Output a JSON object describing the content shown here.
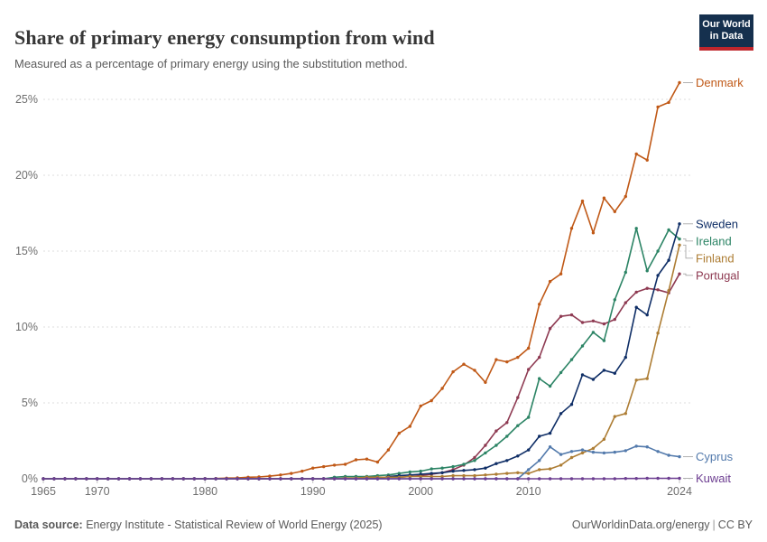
{
  "header": {
    "title": "Share of primary energy consumption from wind",
    "subtitle": "Measured as a percentage of primary energy using the substitution method.",
    "logo": {
      "line1": "Our World",
      "line2": "in Data"
    }
  },
  "footer": {
    "datasource_label": "Data source:",
    "datasource_value": " Energy Institute - Statistical Review of World Energy (2025)",
    "link": "OurWorldinData.org/energy",
    "separator": "|",
    "license": "CC BY"
  },
  "chart_data": {
    "type": "line",
    "title": "Share of primary energy consumption from wind",
    "xlabel": "",
    "ylabel": "",
    "x": {
      "min": 1965,
      "max": 2024,
      "ticks": [
        1965,
        1970,
        1980,
        1990,
        2000,
        2010,
        2024
      ]
    },
    "y": {
      "min": 0,
      "max": 26.5,
      "ticks": [
        0,
        5,
        10,
        15,
        20,
        25
      ],
      "tick_suffix": "%",
      "grid": "dashed"
    },
    "legend_position": "right-of-line-end-labels",
    "colors": {
      "grid": "#dcdcdc",
      "tick_text": "#6e6e6e",
      "connector": "#a8a8a8"
    },
    "series": [
      {
        "name": "Denmark",
        "color": "#c05917",
        "start_year": 1965,
        "values": [
          0,
          0,
          0,
          0,
          0,
          0,
          0,
          0,
          0,
          0,
          0,
          0,
          0,
          0,
          0,
          0.01,
          0.02,
          0.04,
          0.06,
          0.1,
          0.12,
          0.17,
          0.25,
          0.35,
          0.5,
          0.7,
          0.8,
          0.9,
          0.95,
          1.25,
          1.3,
          1.1,
          1.9,
          3,
          3.45,
          4.8,
          5.15,
          5.95,
          7.05,
          7.55,
          7.15,
          6.35,
          7.85,
          7.7,
          8,
          8.6,
          11.5,
          13,
          13.5,
          16.5,
          18.3,
          16.2,
          18.5,
          17.6,
          18.6,
          21.4,
          21,
          24.5,
          24.8,
          26.1
        ]
      },
      {
        "name": "Portugal",
        "color": "#8e3a52",
        "start_year": 1965,
        "values": [
          0,
          0,
          0,
          0,
          0,
          0,
          0,
          0,
          0,
          0,
          0,
          0,
          0,
          0,
          0,
          0,
          0,
          0,
          0,
          0,
          0,
          0,
          0,
          0,
          0,
          0,
          0,
          0,
          0,
          0,
          0,
          0.05,
          0.1,
          0.1,
          0.15,
          0.2,
          0.3,
          0.4,
          0.6,
          0.9,
          1.4,
          2.2,
          3.15,
          3.7,
          5.35,
          7.2,
          8,
          9.9,
          10.7,
          10.8,
          10.3,
          10.4,
          10.2,
          10.5,
          11.6,
          12.3,
          12.55,
          12.45,
          12.25,
          13.5
        ]
      },
      {
        "name": "Ireland",
        "color": "#2c8465",
        "start_year": 1965,
        "values": [
          0,
          0,
          0,
          0,
          0,
          0,
          0,
          0,
          0,
          0,
          0,
          0,
          0,
          0,
          0,
          0,
          0,
          0,
          0,
          0,
          0,
          0,
          0,
          0,
          0,
          0,
          0,
          0.1,
          0.15,
          0.15,
          0.15,
          0.2,
          0.25,
          0.35,
          0.45,
          0.5,
          0.65,
          0.7,
          0.8,
          0.95,
          1.2,
          1.7,
          2.2,
          2.8,
          3.5,
          4.05,
          6.6,
          6.1,
          7,
          7.85,
          8.75,
          9.65,
          9.1,
          11.8,
          13.6,
          16.5,
          13.7,
          15,
          16.4,
          15.8
        ]
      },
      {
        "name": "Sweden",
        "color": "#0f2e66",
        "start_year": 1965,
        "values": [
          0,
          0,
          0,
          0,
          0,
          0,
          0,
          0,
          0,
          0,
          0,
          0,
          0,
          0,
          0,
          0,
          0,
          0,
          0,
          0,
          0,
          0,
          0,
          0,
          0,
          0,
          0,
          0,
          0,
          0,
          0,
          0,
          0.15,
          0.2,
          0.25,
          0.3,
          0.35,
          0.4,
          0.5,
          0.55,
          0.6,
          0.7,
          1,
          1.2,
          1.5,
          1.9,
          2.8,
          3,
          4.3,
          4.9,
          6.85,
          6.55,
          7.15,
          6.95,
          8,
          11.3,
          10.8,
          13.4,
          14.4,
          16.8
        ]
      },
      {
        "name": "Finland",
        "color": "#ad7d34",
        "start_year": 1965,
        "values": [
          0,
          0,
          0,
          0,
          0,
          0,
          0,
          0,
          0,
          0,
          0,
          0,
          0,
          0,
          0,
          0,
          0,
          0,
          0,
          0,
          0,
          0,
          0,
          0,
          0,
          0,
          0,
          0,
          0.05,
          0.05,
          0.1,
          0.1,
          0.1,
          0.1,
          0.15,
          0.15,
          0.15,
          0.15,
          0.2,
          0.2,
          0.2,
          0.25,
          0.3,
          0.35,
          0.4,
          0.35,
          0.6,
          0.65,
          0.9,
          1.4,
          1.7,
          2,
          2.6,
          4.1,
          4.3,
          6.5,
          6.6,
          9.6,
          12.4,
          15.4
        ]
      },
      {
        "name": "Cyprus",
        "color": "#537aac",
        "start_year": 1965,
        "values": [
          0,
          0,
          0,
          0,
          0,
          0,
          0,
          0,
          0,
          0,
          0,
          0,
          0,
          0,
          0,
          0,
          0,
          0,
          0,
          0,
          0,
          0,
          0,
          0,
          0,
          0,
          0,
          0,
          0,
          0,
          0,
          0,
          0,
          0,
          0,
          0,
          0,
          0,
          0,
          0,
          0,
          0,
          0,
          0,
          0,
          0.6,
          1.2,
          2.1,
          1.6,
          1.8,
          1.9,
          1.75,
          1.7,
          1.75,
          1.85,
          2.15,
          2.1,
          1.8,
          1.55,
          1.45
        ]
      },
      {
        "name": "Kuwait",
        "color": "#6d3e91",
        "start_year": 1965,
        "values": [
          0,
          0,
          0,
          0,
          0,
          0,
          0,
          0,
          0,
          0,
          0,
          0,
          0,
          0,
          0,
          0,
          0,
          0,
          0,
          0,
          0,
          0,
          0,
          0,
          0,
          0,
          0,
          0,
          0,
          0,
          0,
          0,
          0,
          0,
          0,
          0,
          0,
          0,
          0,
          0,
          0,
          0,
          0,
          0,
          0,
          0,
          0,
          0,
          0,
          0,
          0,
          0,
          0,
          0,
          0.02,
          0.02,
          0.03,
          0.03,
          0.03,
          0.03
        ]
      }
    ]
  }
}
